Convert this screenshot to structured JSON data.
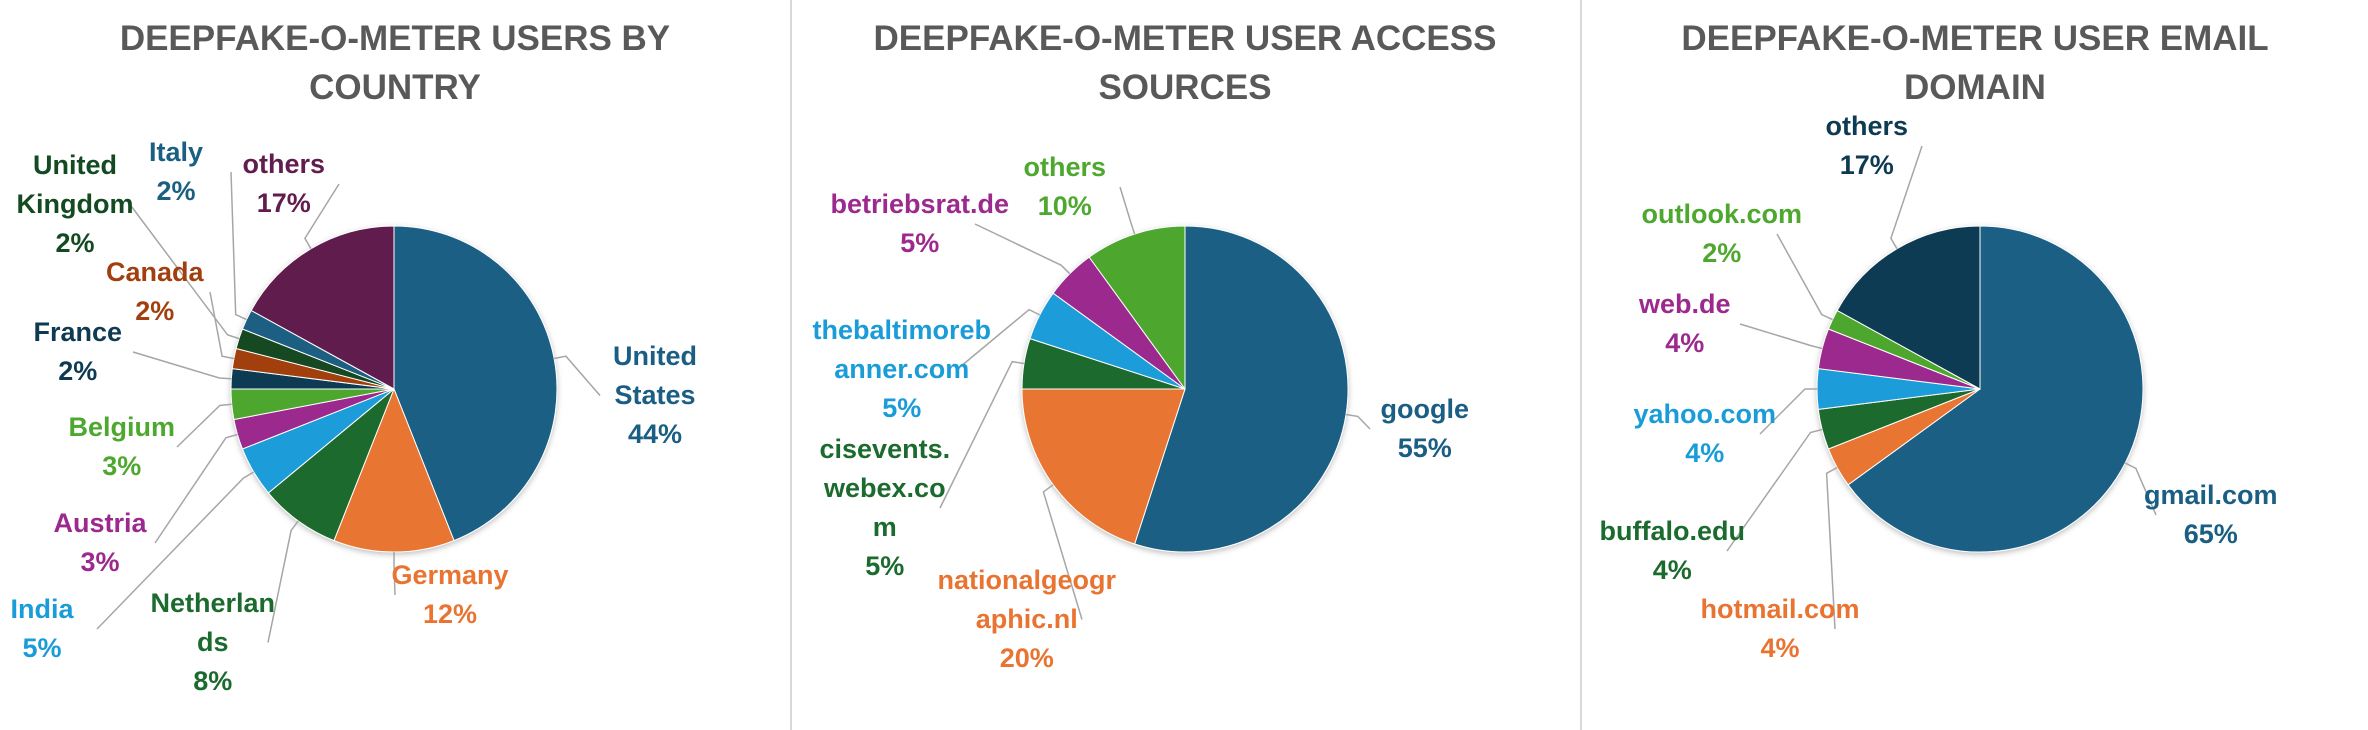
{
  "colors": {
    "dark_blue": "#1A5E84",
    "orange": "#E97432",
    "dark_green": "#1C6B2E",
    "light_blue": "#1A9CD8",
    "magenta": "#9C2A8E",
    "light_green": "#4EA72E",
    "navy": "#0E3A52",
    "brown": "#A13F0E",
    "teal": "#1B5F82",
    "purple": "#601D4E",
    "title_gray": "#595959"
  },
  "chart_data": [
    {
      "type": "pie",
      "title": "DEEPFAKE-O-METER USERS BY\nCOUNTRY",
      "slices": [
        {
          "label": "United\nStates",
          "value": 44,
          "pct": "44%",
          "color": "#1A5E84",
          "label_color": "#1A5E84"
        },
        {
          "label": "Germany",
          "value": 12,
          "pct": "12%",
          "color": "#E97432",
          "label_color": "#E97432"
        },
        {
          "label": "Netherlan\nds",
          "value": 8,
          "pct": "8%",
          "color": "#1C6B2E",
          "label_color": "#1C6B2E"
        },
        {
          "label": "India",
          "value": 5,
          "pct": "5%",
          "color": "#1A9CD8",
          "label_color": "#1A9CD8"
        },
        {
          "label": "Austria",
          "value": 3,
          "pct": "3%",
          "color": "#9C2A8E",
          "label_color": "#9C2A8E"
        },
        {
          "label": "Belgium",
          "value": 3,
          "pct": "3%",
          "color": "#4EA72E",
          "label_color": "#4EA72E"
        },
        {
          "label": "France",
          "value": 2,
          "pct": "2%",
          "color": "#0E3A52",
          "label_color": "#0E3A52"
        },
        {
          "label": "Canada",
          "value": 2,
          "pct": "2%",
          "color": "#A13F0E",
          "label_color": "#A13F0E"
        },
        {
          "label": "United\nKingdom",
          "value": 2,
          "pct": "2%",
          "color": "#134A22",
          "label_color": "#134A22"
        },
        {
          "label": "Italy",
          "value": 2,
          "pct": "2%",
          "color": "#1B5F82",
          "label_color": "#1B5F82"
        },
        {
          "label": "others",
          "value": 17,
          "pct": "17%",
          "color": "#601D4E",
          "label_color": "#601D4E"
        }
      ]
    },
    {
      "type": "pie",
      "title": "DEEPFAKE-O-METER USER ACCESS\nSOURCES",
      "slices": [
        {
          "label": "google",
          "value": 55,
          "pct": "55%",
          "color": "#1A5E84",
          "label_color": "#1A5E84"
        },
        {
          "label": "nationalgeogr\naphic.nl",
          "value": 20,
          "pct": "20%",
          "color": "#E97432",
          "label_color": "#E97432"
        },
        {
          "label": "cisevents.\nwebex.co\nm",
          "value": 5,
          "pct": "5%",
          "color": "#1C6B2E",
          "label_color": "#1C6B2E"
        },
        {
          "label": "thebaltimoreb\nanner.com",
          "value": 5,
          "pct": "5%",
          "color": "#1A9CD8",
          "label_color": "#1A9CD8"
        },
        {
          "label": "betriebsrat.de",
          "value": 5,
          "pct": "5%",
          "color": "#9C2A8E",
          "label_color": "#9C2A8E"
        },
        {
          "label": "others",
          "value": 10,
          "pct": "10%",
          "color": "#4EA72E",
          "label_color": "#4EA72E"
        }
      ]
    },
    {
      "type": "pie",
      "title": "DEEPFAKE-O-METER  USER EMAIL\nDOMAIN",
      "slices": [
        {
          "label": "gmail.com",
          "value": 65,
          "pct": "65%",
          "color": "#1A5E84",
          "label_color": "#1A5E84"
        },
        {
          "label": "hotmail.com",
          "value": 4,
          "pct": "4%",
          "color": "#E97432",
          "label_color": "#E97432"
        },
        {
          "label": "buffalo.edu",
          "value": 4,
          "pct": "4%",
          "color": "#1C6B2E",
          "label_color": "#1C6B2E"
        },
        {
          "label": "yahoo.com",
          "value": 4,
          "pct": "4%",
          "color": "#1A9CD8",
          "label_color": "#1A9CD8"
        },
        {
          "label": "web.de",
          "value": 4,
          "pct": "4%",
          "color": "#9C2A8E",
          "label_color": "#9C2A8E"
        },
        {
          "label": "outlook.com",
          "value": 2,
          "pct": "2%",
          "color": "#4EA72E",
          "label_color": "#4EA72E"
        },
        {
          "label": "others",
          "value": 17,
          "pct": "17%",
          "color": "#0E3A52",
          "label_color": "#0E3A52"
        }
      ]
    }
  ]
}
